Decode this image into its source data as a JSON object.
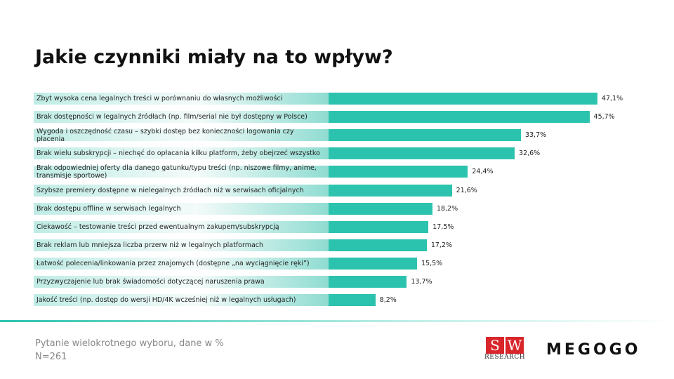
{
  "chart_data": {
    "type": "bar",
    "orientation": "horizontal",
    "title": "Jakie czynniki miały na to wpływ?",
    "categories": [
      "Zbyt wysoka cena legalnych treści w porównaniu do własnych możliwości",
      "Brak dostępności w legalnych źródłach (np. film/serial nie był dostępny w Polsce)",
      "Wygoda i oszczędność czasu – szybki dostęp bez konieczności logowania czy płacenia",
      "Brak wielu subskrypcji – niechęć do opłacania kilku platform, żeby obejrzeć wszystko",
      "Brak odpowiedniej oferty dla danego gatunku/typu treści (np. niszowe filmy, anime, transmisje sportowe)",
      "Szybsze premiery dostępne w nielegalnych źródłach niż w serwisach oficjalnych",
      "Brak dostępu offline w serwisach legalnych",
      "Ciekawość – testowanie treści przed ewentualnym zakupem/subskrypcją",
      "Brak reklam lub mniejsza liczba przerw niż w legalnych platformach",
      "Łatwość polecenia/linkowania przez znajomych (dostępne „na wyciągnięcie ręki”)",
      "Przyzwyczajenie lub brak świadomości dotyczącej naruszenia prawa",
      "Jakość treści (np. dostęp do wersji HD/4K wcześniej niż w legalnych usługach)"
    ],
    "values": [
      47.1,
      45.7,
      33.7,
      32.6,
      24.4,
      21.6,
      18.2,
      17.5,
      17.2,
      15.5,
      13.7,
      8.2
    ],
    "value_labels": [
      "47,1%",
      "45,7%",
      "33,7%",
      "32,6%",
      "24,4%",
      "21,6%",
      "18,2%",
      "17,5%",
      "17,2%",
      "15,5%",
      "13,7%",
      "8,2%"
    ],
    "color": "#2cc3ae",
    "note": "Pytanie wielokrotnego wyboru, dane w %",
    "sample": "N=261"
  },
  "logos": {
    "sw_letters": [
      "S",
      "W"
    ],
    "sw_sub": "RESEARCH",
    "megogo": "MEGOGO"
  }
}
